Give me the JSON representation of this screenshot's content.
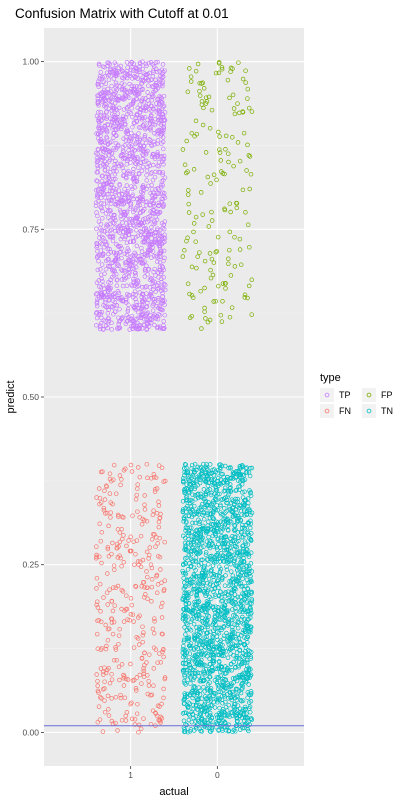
{
  "chart_data": {
    "type": "scatter",
    "title": "Confusion Matrix with Cutoff at 0.01",
    "xlabel": "actual",
    "ylabel": "predict",
    "categories": [
      "1",
      "0"
    ],
    "ylim": [
      -0.05,
      1.05
    ],
    "yticks": [
      0.0,
      0.25,
      0.5,
      0.75,
      1.0
    ],
    "ytick_labels": [
      "0.00",
      "0.25",
      "0.50",
      "0.75",
      "1.00"
    ],
    "cutoff": 0.01,
    "cutoff_color": "#6a6cd6",
    "jitter_width": 0.4,
    "grid": true,
    "legend": {
      "title": "type",
      "position": "right",
      "entries": [
        {
          "label": "TP",
          "color": "#c77cff"
        },
        {
          "label": "FP",
          "color": "#7cae00"
        },
        {
          "label": "FN",
          "color": "#f8766d"
        },
        {
          "label": "TN",
          "color": "#00bfc4"
        }
      ]
    },
    "series": [
      {
        "name": "TP",
        "actual": "1",
        "color": "#c77cff",
        "count": 1600,
        "predict_range": [
          0.6,
          1.0
        ]
      },
      {
        "name": "FP",
        "actual": "0",
        "color": "#7cae00",
        "count": 170,
        "predict_range": [
          0.6,
          1.0
        ]
      },
      {
        "name": "FN",
        "actual": "1",
        "color": "#f8766d",
        "count": 360,
        "predict_range": [
          0.0,
          0.4
        ]
      },
      {
        "name": "TN",
        "actual": "0",
        "color": "#00bfc4",
        "count": 1900,
        "predict_range": [
          0.0,
          0.4
        ]
      }
    ]
  }
}
